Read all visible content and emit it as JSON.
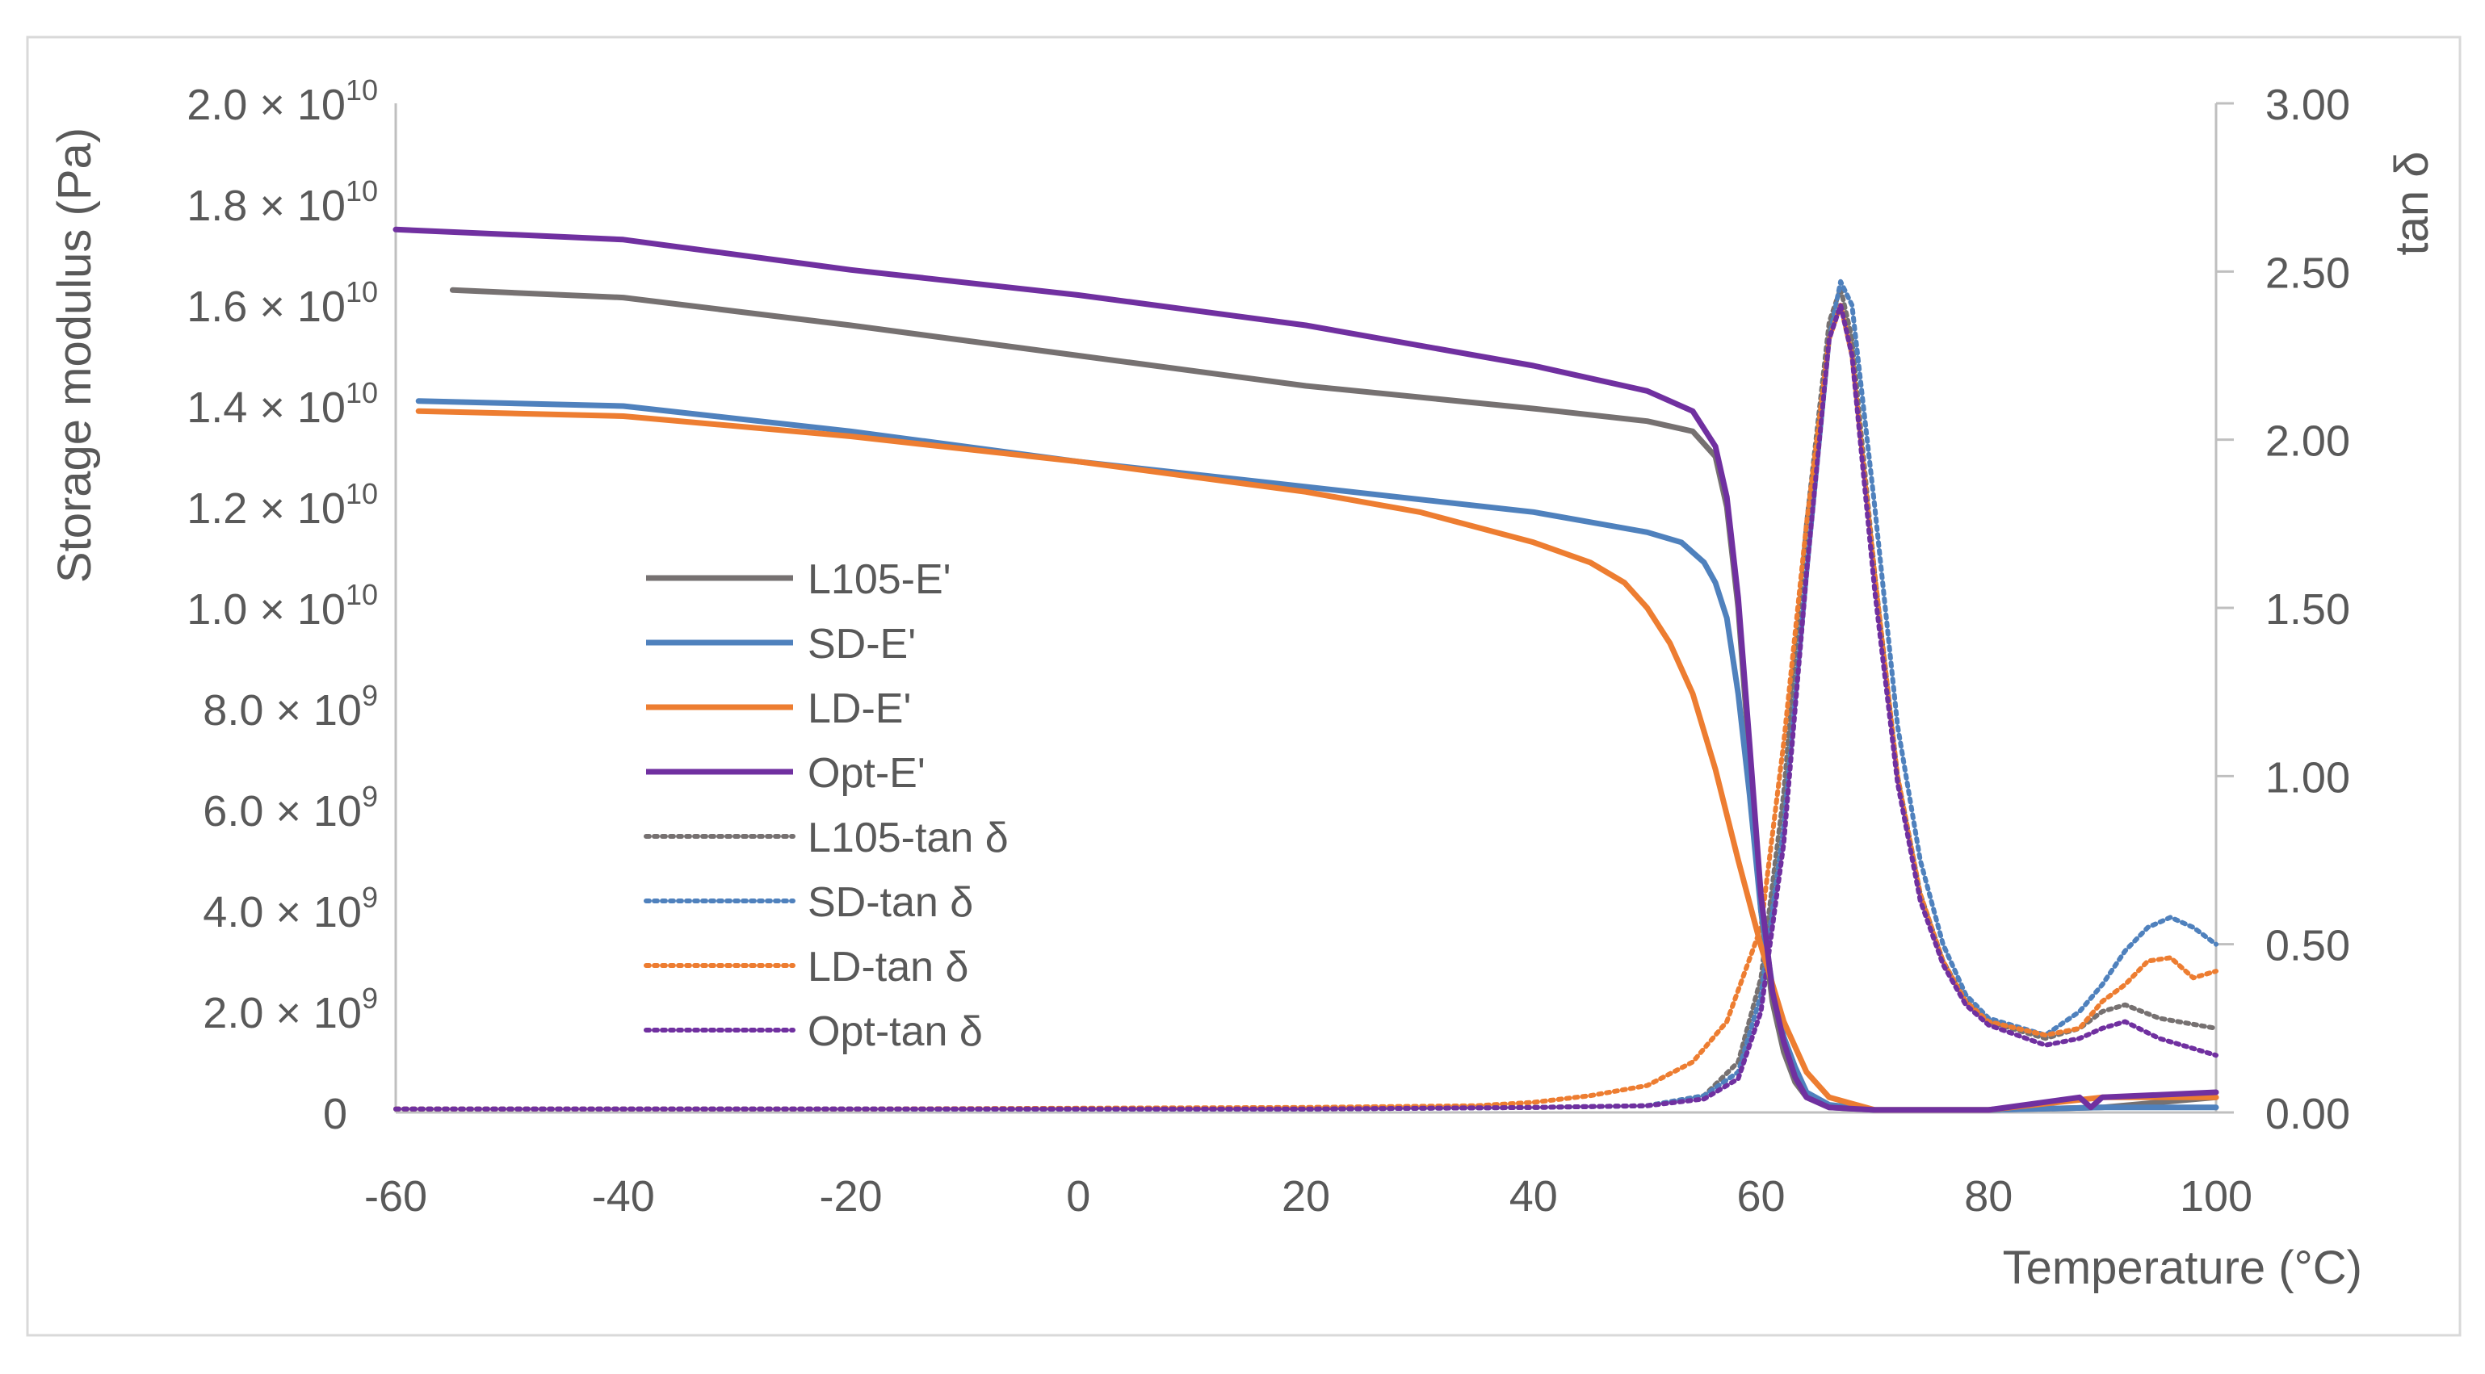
{
  "chart_data": {
    "type": "line",
    "title": "",
    "xlabel": "Temperature (°C)",
    "ylabel_left": "Storage modulus (Pa)",
    "ylabel_right": "tan δ",
    "xlim": [
      -60,
      100
    ],
    "ylim_left": [
      0,
      20000000000
    ],
    "ylim_right": [
      0,
      3.0
    ],
    "x_ticks": [
      "-60",
      "-40",
      "-20",
      "0",
      "20",
      "40",
      "60",
      "80",
      "100"
    ],
    "y_left_ticks": [
      {
        "base": "0",
        "exp": ""
      },
      {
        "base": "2.0 × 10",
        "exp": "9"
      },
      {
        "base": "4.0 × 10",
        "exp": "9"
      },
      {
        "base": "6.0 × 10",
        "exp": "9"
      },
      {
        "base": "8.0 × 10",
        "exp": "9"
      },
      {
        "base": "1.0 × 10",
        "exp": "10"
      },
      {
        "base": "1.2 × 10",
        "exp": "10"
      },
      {
        "base": "1.4 × 10",
        "exp": "10"
      },
      {
        "base": "1.6 × 10",
        "exp": "10"
      },
      {
        "base": "1.8 × 10",
        "exp": "10"
      },
      {
        "base": "2.0 × 10",
        "exp": "10"
      }
    ],
    "y_right_ticks": [
      "0.00",
      "0.50",
      "1.00",
      "1.50",
      "2.00",
      "2.50",
      "3.00"
    ],
    "grid": false,
    "legend_position": "center-left",
    "series": [
      {
        "name": "L105-E'",
        "axis": "left",
        "style": "solid",
        "color": "#767171",
        "x": [
          -55,
          -40,
          -20,
          0,
          20,
          40,
          50,
          54,
          56,
          57,
          58,
          59,
          60,
          61,
          62,
          63,
          64,
          66,
          70,
          80,
          90,
          100
        ],
        "y": [
          16300000000,
          16150000000,
          15600000000,
          15000000000,
          14400000000,
          13950000000,
          13700000000,
          13500000000,
          13000000000,
          12000000000,
          10000000000,
          7000000000,
          4000000000,
          2200000000,
          1200000000,
          600000000,
          300000000,
          100000000,
          50000000,
          50000000,
          100000000,
          300000000
        ]
      },
      {
        "name": "SD-E'",
        "axis": "left",
        "style": "solid",
        "color": "#4f81bd",
        "x": [
          -58,
          -40,
          -20,
          0,
          20,
          40,
          50,
          53,
          55,
          56,
          57,
          58,
          59,
          60,
          61,
          62,
          63,
          64,
          66,
          70,
          80,
          90,
          100
        ],
        "y": [
          14100000000,
          14000000000,
          13500000000,
          12900000000,
          12400000000,
          11900000000,
          11500000000,
          11300000000,
          10900000000,
          10500000000,
          9800000000,
          8300000000,
          6300000000,
          4000000000,
          2500000000,
          1500000000,
          900000000,
          400000000,
          150000000,
          50000000,
          50000000,
          100000000,
          100000000
        ]
      },
      {
        "name": "LD-E'",
        "axis": "left",
        "style": "solid",
        "color": "#ed7d31",
        "x": [
          -58,
          -40,
          -20,
          0,
          20,
          30,
          40,
          45,
          48,
          50,
          52,
          54,
          56,
          58,
          60,
          62,
          64,
          66,
          70,
          80,
          86,
          90,
          100
        ],
        "y": [
          13900000000,
          13800000000,
          13400000000,
          12900000000,
          12300000000,
          11900000000,
          11300000000,
          10900000000,
          10500000000,
          10000000000,
          9300000000,
          8300000000,
          6800000000,
          5000000000,
          3300000000,
          1800000000,
          800000000,
          300000000,
          50000000,
          50000000,
          200000000,
          300000000,
          300000000
        ]
      },
      {
        "name": "Opt-E'",
        "axis": "left",
        "style": "solid",
        "color": "#7030a0",
        "x": [
          -60,
          -50,
          -40,
          -20,
          0,
          20,
          40,
          50,
          54,
          56,
          57,
          58,
          59,
          60,
          61,
          62,
          63,
          64,
          66,
          70,
          80,
          88,
          89,
          90,
          100
        ],
        "y": [
          17500000000,
          17400000000,
          17300000000,
          16700000000,
          16200000000,
          15600000000,
          14800000000,
          14300000000,
          13900000000,
          13200000000,
          12200000000,
          10200000000,
          7300000000,
          4300000000,
          2400000000,
          1400000000,
          700000000,
          300000000,
          100000000,
          50000000,
          50000000,
          300000000,
          100000000,
          300000000,
          400000000
        ]
      },
      {
        "name": "L105-tan δ",
        "axis": "right",
        "style": "dotted",
        "color": "#767171",
        "x": [
          -60,
          -20,
          20,
          40,
          50,
          55,
          58,
          60,
          62,
          64,
          66,
          67,
          68,
          70,
          72,
          74,
          76,
          78,
          80,
          85,
          88,
          90,
          92,
          95,
          100
        ],
        "y": [
          0.01,
          0.01,
          0.01,
          0.015,
          0.02,
          0.05,
          0.15,
          0.4,
          0.95,
          1.75,
          2.35,
          2.45,
          2.3,
          1.6,
          1.0,
          0.65,
          0.45,
          0.33,
          0.27,
          0.22,
          0.25,
          0.3,
          0.32,
          0.28,
          0.25
        ]
      },
      {
        "name": "SD-tan δ",
        "axis": "right",
        "style": "dotted",
        "color": "#4f81bd",
        "x": [
          -60,
          -20,
          20,
          40,
          50,
          55,
          58,
          60,
          62,
          64,
          66,
          67,
          68,
          70,
          72,
          74,
          76,
          78,
          80,
          85,
          88,
          90,
          92,
          94,
          96,
          98,
          100
        ],
        "y": [
          0.01,
          0.01,
          0.01,
          0.015,
          0.02,
          0.05,
          0.12,
          0.35,
          0.85,
          1.6,
          2.3,
          2.47,
          2.4,
          1.8,
          1.15,
          0.75,
          0.5,
          0.35,
          0.28,
          0.23,
          0.3,
          0.38,
          0.48,
          0.55,
          0.58,
          0.55,
          0.5
        ]
      },
      {
        "name": "LD-tan δ",
        "axis": "right",
        "style": "dotted",
        "color": "#ed7d31",
        "x": [
          -60,
          -20,
          20,
          35,
          40,
          45,
          50,
          54,
          57,
          60,
          62,
          64,
          66,
          67,
          68,
          70,
          72,
          74,
          76,
          78,
          80,
          85,
          88,
          90,
          92,
          94,
          96,
          98,
          100
        ],
        "y": [
          0.01,
          0.01,
          0.015,
          0.02,
          0.03,
          0.05,
          0.08,
          0.15,
          0.27,
          0.55,
          1.1,
          1.75,
          2.3,
          2.4,
          2.25,
          1.6,
          1.0,
          0.65,
          0.45,
          0.33,
          0.27,
          0.23,
          0.25,
          0.33,
          0.38,
          0.45,
          0.46,
          0.4,
          0.42
        ]
      },
      {
        "name": "Opt-tan δ",
        "axis": "right",
        "style": "dotted",
        "color": "#7030a0",
        "x": [
          -60,
          -20,
          20,
          40,
          50,
          55,
          58,
          60,
          62,
          64,
          66,
          67,
          68,
          70,
          72,
          74,
          76,
          78,
          80,
          85,
          88,
          90,
          92,
          95,
          100
        ],
        "y": [
          0.01,
          0.01,
          0.01,
          0.015,
          0.02,
          0.04,
          0.1,
          0.3,
          0.8,
          1.6,
          2.3,
          2.4,
          2.25,
          1.55,
          0.98,
          0.63,
          0.44,
          0.32,
          0.26,
          0.2,
          0.22,
          0.25,
          0.27,
          0.22,
          0.17
        ]
      }
    ]
  }
}
